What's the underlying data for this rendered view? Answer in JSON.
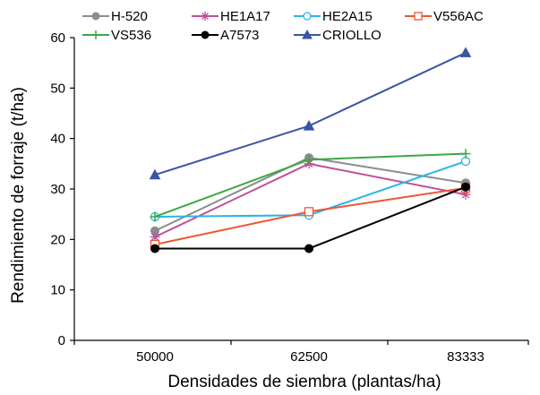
{
  "chart_data": {
    "type": "line",
    "title": "",
    "xlabel": "Densidades de siembra (plantas/ha)",
    "ylabel": "Rendimiento de forraje (t/ha)",
    "categories": [
      "50000",
      "62500",
      "83333"
    ],
    "ylim": [
      0,
      60
    ],
    "yticks": [
      0,
      10,
      20,
      30,
      40,
      50,
      60
    ],
    "grid": false,
    "legend_position": "top",
    "series": [
      {
        "name": "H-520",
        "values": [
          21.7,
          36.2,
          31.2
        ],
        "color": "#8c8c8c",
        "marker": "circle-filled"
      },
      {
        "name": "HE1A17",
        "values": [
          20.5,
          35.0,
          28.9
        ],
        "color": "#c0509a",
        "marker": "asterisk"
      },
      {
        "name": "HE2A15",
        "values": [
          24.5,
          24.8,
          35.5
        ],
        "color": "#29b5e8",
        "marker": "circle-open"
      },
      {
        "name": "V556AC",
        "values": [
          19.0,
          25.5,
          30.2
        ],
        "color": "#ee5533",
        "marker": "square-open"
      },
      {
        "name": "VS536",
        "values": [
          24.5,
          35.8,
          37.0
        ],
        "color": "#3aa845",
        "marker": "plus"
      },
      {
        "name": "A7573",
        "values": [
          18.2,
          18.2,
          30.4
        ],
        "color": "#000000",
        "marker": "circle-filled"
      },
      {
        "name": "CRIOLLO",
        "values": [
          32.8,
          42.5,
          57.0
        ],
        "color": "#3a55a4",
        "marker": "triangle-filled"
      }
    ]
  }
}
